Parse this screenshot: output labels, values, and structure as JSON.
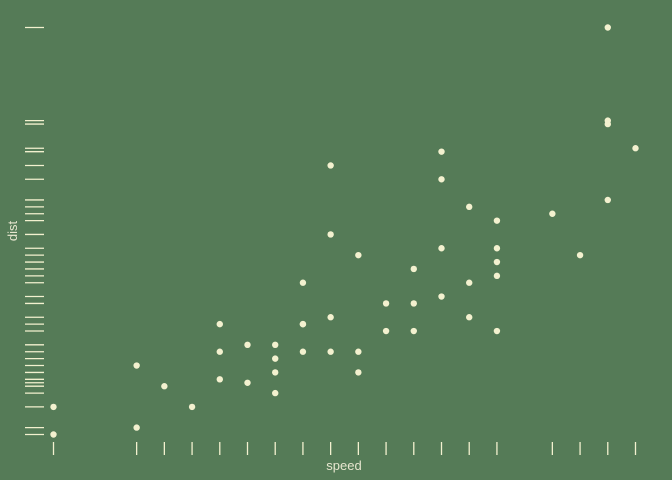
{
  "chart_data": {
    "type": "scatter",
    "title": "",
    "xlabel": "speed",
    "ylabel": "dist",
    "xlim": [
      3.5,
      25.5
    ],
    "ylim": [
      -2,
      123
    ],
    "grid": false,
    "rug": true,
    "background_color": "#557b57",
    "point_color": "#f3f1cf",
    "text_color": "#e7e6cf",
    "points": [
      {
        "x": 4,
        "y": 2
      },
      {
        "x": 4,
        "y": 10
      },
      {
        "x": 7,
        "y": 4
      },
      {
        "x": 7,
        "y": 22
      },
      {
        "x": 8,
        "y": 16
      },
      {
        "x": 9,
        "y": 10
      },
      {
        "x": 10,
        "y": 18
      },
      {
        "x": 10,
        "y": 26
      },
      {
        "x": 10,
        "y": 34
      },
      {
        "x": 11,
        "y": 17
      },
      {
        "x": 11,
        "y": 28
      },
      {
        "x": 12,
        "y": 14
      },
      {
        "x": 12,
        "y": 20
      },
      {
        "x": 12,
        "y": 24
      },
      {
        "x": 12,
        "y": 28
      },
      {
        "x": 13,
        "y": 26
      },
      {
        "x": 13,
        "y": 34
      },
      {
        "x": 13,
        "y": 34
      },
      {
        "x": 13,
        "y": 46
      },
      {
        "x": 14,
        "y": 26
      },
      {
        "x": 14,
        "y": 36
      },
      {
        "x": 14,
        "y": 60
      },
      {
        "x": 14,
        "y": 80
      },
      {
        "x": 15,
        "y": 20
      },
      {
        "x": 15,
        "y": 26
      },
      {
        "x": 15,
        "y": 54
      },
      {
        "x": 16,
        "y": 32
      },
      {
        "x": 16,
        "y": 40
      },
      {
        "x": 17,
        "y": 32
      },
      {
        "x": 17,
        "y": 40
      },
      {
        "x": 17,
        "y": 50
      },
      {
        "x": 18,
        "y": 42
      },
      {
        "x": 18,
        "y": 56
      },
      {
        "x": 18,
        "y": 76
      },
      {
        "x": 18,
        "y": 84
      },
      {
        "x": 19,
        "y": 36
      },
      {
        "x": 19,
        "y": 46
      },
      {
        "x": 19,
        "y": 68
      },
      {
        "x": 20,
        "y": 32
      },
      {
        "x": 20,
        "y": 48
      },
      {
        "x": 20,
        "y": 52
      },
      {
        "x": 20,
        "y": 56
      },
      {
        "x": 20,
        "y": 64
      },
      {
        "x": 22,
        "y": 66
      },
      {
        "x": 23,
        "y": 54
      },
      {
        "x": 24,
        "y": 70
      },
      {
        "x": 24,
        "y": 92
      },
      {
        "x": 24,
        "y": 93
      },
      {
        "x": 24,
        "y": 120
      },
      {
        "x": 25,
        "y": 85
      }
    ]
  }
}
